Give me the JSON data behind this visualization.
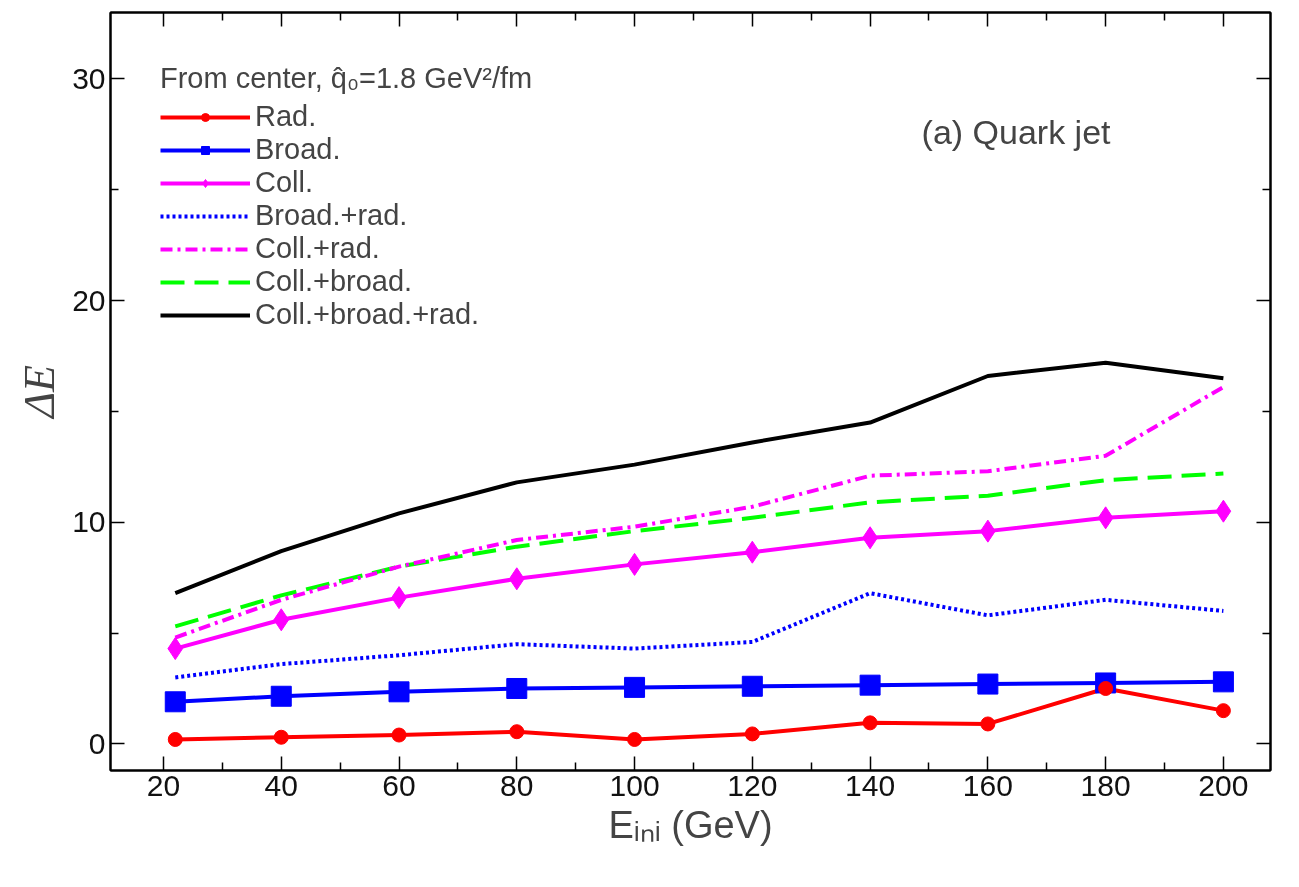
{
  "chart_data": {
    "type": "line",
    "xlabel": "Eᵢₙᵢ (GeV)",
    "ylabel": "ΔE",
    "legend_title": "From center, q̂₀=1.8 GeV²/fm",
    "annotations": [
      "(a) Quark jet"
    ],
    "x": [
      22,
      40,
      60,
      80,
      100,
      120,
      140,
      160,
      180,
      200
    ],
    "xlim": [
      11,
      208
    ],
    "xticks": [
      20,
      40,
      60,
      80,
      100,
      120,
      140,
      160,
      180,
      200
    ],
    "ylim": [
      -1.2,
      33
    ],
    "yticks": [
      0,
      10,
      20,
      30
    ],
    "grid": false,
    "legend": "top left",
    "series": [
      {
        "name": "Rad.",
        "color": "#ff0000",
        "marker": "circle",
        "line_style": "solid",
        "values": [
          0.2,
          0.3,
          0.4,
          0.55,
          0.2,
          0.45,
          0.95,
          0.9,
          2.5,
          1.5
        ]
      },
      {
        "name": "Broad.",
        "color": "#0000ff",
        "marker": "square",
        "line_style": "solid",
        "values": [
          1.9,
          2.15,
          2.35,
          2.5,
          2.55,
          2.6,
          2.65,
          2.7,
          2.75,
          2.8
        ]
      },
      {
        "name": "Coll.",
        "color": "#ff00ff",
        "marker": "diamond",
        "line_style": "solid",
        "values": [
          4.3,
          5.6,
          6.6,
          7.45,
          8.1,
          8.65,
          9.3,
          9.6,
          10.2,
          10.5
        ]
      },
      {
        "name": "Broad.+rad.",
        "color": "#0000ff",
        "marker": "none",
        "line_style": "dotted",
        "values": [
          3.0,
          3.6,
          4.0,
          4.5,
          4.3,
          4.6,
          6.8,
          5.8,
          6.5,
          6.0
        ]
      },
      {
        "name": "Coll.+rad.",
        "color": "#ff00ff",
        "marker": "none",
        "line_style": "dashdot",
        "values": [
          4.8,
          6.5,
          8.0,
          9.2,
          9.8,
          10.7,
          12.1,
          12.3,
          13.0,
          16.1
        ]
      },
      {
        "name": "Coll.+broad.",
        "color": "#00ff00",
        "marker": "none",
        "line_style": "dashed",
        "values": [
          5.3,
          6.7,
          8.0,
          8.9,
          9.6,
          10.2,
          10.9,
          11.2,
          11.9,
          12.2
        ]
      },
      {
        "name": "Coll.+broad.+rad.",
        "color": "#000000",
        "marker": "none",
        "line_style": "solid",
        "values": [
          6.8,
          8.7,
          10.4,
          11.8,
          12.6,
          13.6,
          14.5,
          16.6,
          17.2,
          16.5
        ]
      }
    ]
  }
}
